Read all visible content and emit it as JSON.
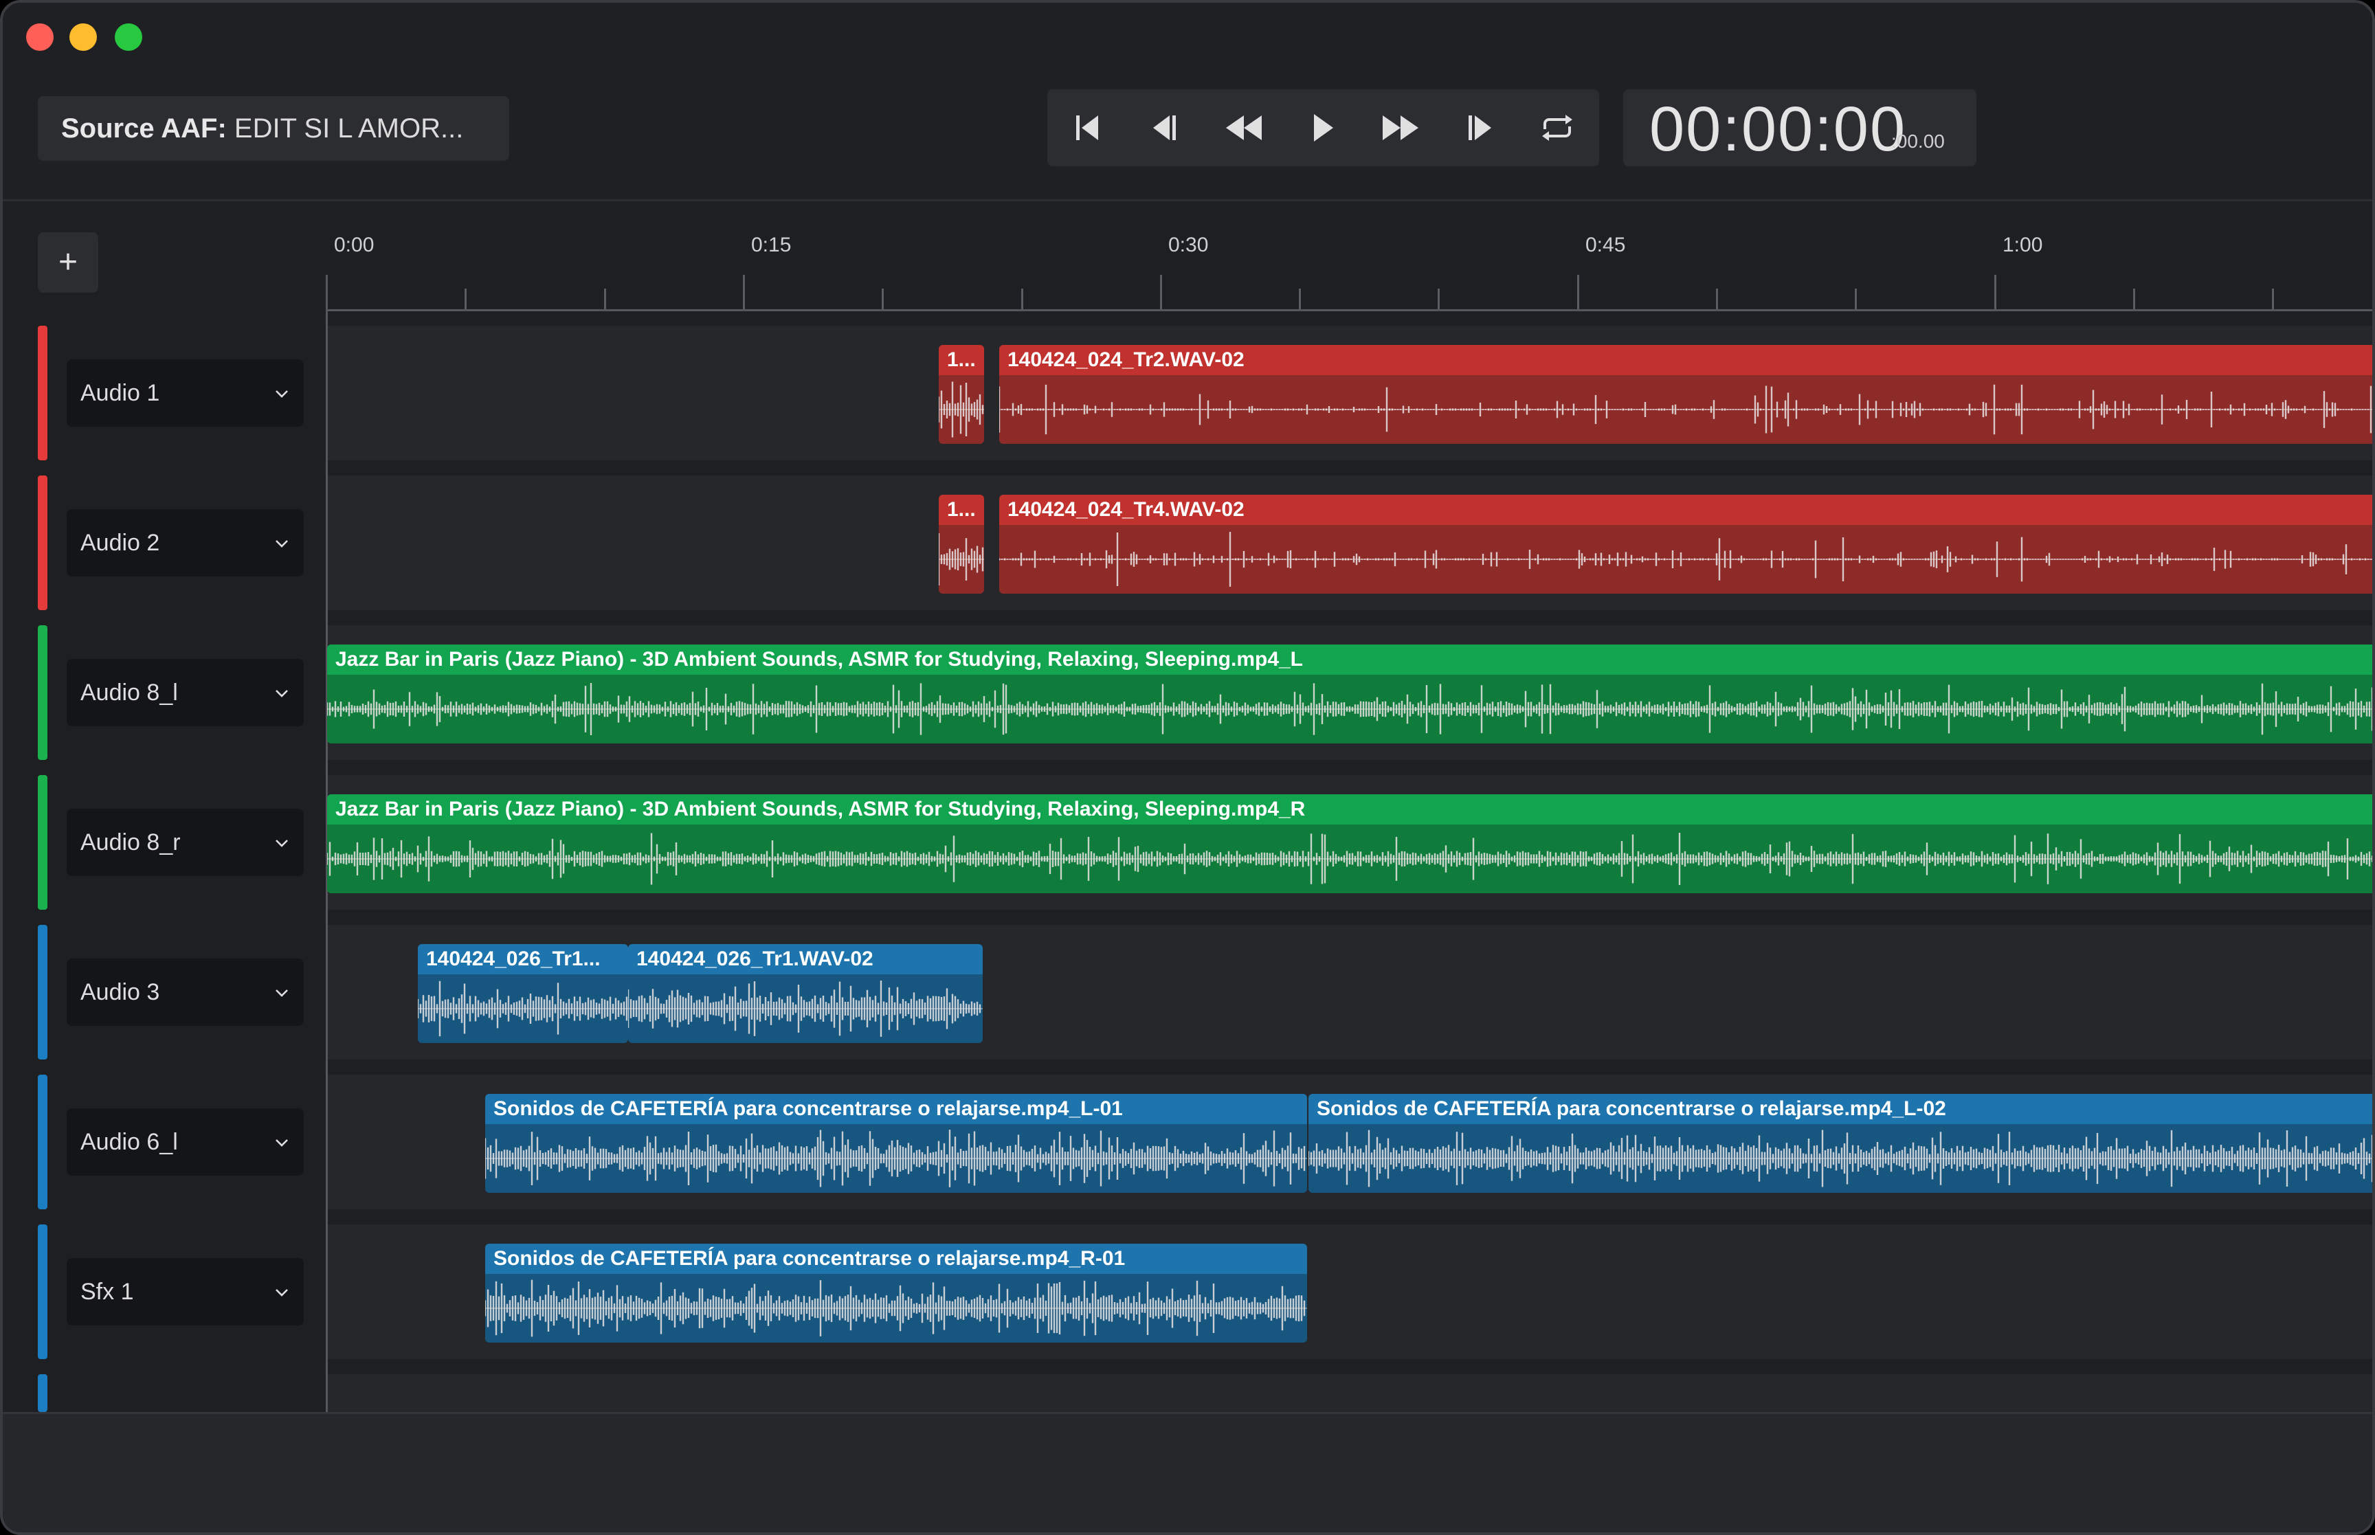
{
  "header": {
    "source_label": "Source AAF:",
    "source_name": "EDIT SI L AMOR...",
    "timecode_main": "00:00:00",
    "timecode_sub": ":00.00"
  },
  "transport_buttons": [
    "skip-to-start-icon",
    "step-back-icon",
    "rewind-icon",
    "play-icon",
    "fast-forward-icon",
    "step-forward-icon",
    "loop-icon"
  ],
  "add_label": "+",
  "ruler": {
    "labels": [
      "0:00",
      "0:15",
      "0:30",
      "0:45",
      "1:00"
    ]
  },
  "colors": {
    "red": "#c1312e",
    "green": "#12a44e",
    "blue": "#1e74ac"
  },
  "tracks": [
    {
      "name": "Audio 1",
      "color": "red",
      "clips": [
        {
          "label": "1..."
        },
        {
          "label": "140424_024_Tr2.WAV-02"
        }
      ]
    },
    {
      "name": "Audio 2",
      "color": "red",
      "clips": [
        {
          "label": "1..."
        },
        {
          "label": "140424_024_Tr4.WAV-02"
        }
      ]
    },
    {
      "name": "Audio 8_l",
      "color": "green",
      "clips": [
        {
          "label": "Jazz Bar in Paris (Jazz Piano) - 3D Ambient Sounds, ASMR for Studying, Relaxing, Sleeping.mp4_L"
        }
      ]
    },
    {
      "name": "Audio 8_r",
      "color": "green",
      "clips": [
        {
          "label": "Jazz Bar in Paris (Jazz Piano) - 3D Ambient Sounds, ASMR for Studying, Relaxing, Sleeping.mp4_R"
        }
      ]
    },
    {
      "name": "Audio 3",
      "color": "blue",
      "clips": [
        {
          "label": "140424_026_Tr1..."
        },
        {
          "label": "140424_026_Tr1.WAV-02"
        }
      ]
    },
    {
      "name": "Audio 6_l",
      "color": "blue",
      "clips": [
        {
          "label": "Sonidos de CAFETERÍA para concentrarse o relajarse.mp4_L-01"
        },
        {
          "label": "Sonidos de CAFETERÍA para concentrarse o relajarse.mp4_L-02"
        }
      ]
    },
    {
      "name": "Sfx 1",
      "color": "blue",
      "clips": [
        {
          "label": "Sonidos de CAFETERÍA para concentrarse o relajarse.mp4_R-01"
        }
      ]
    }
  ]
}
